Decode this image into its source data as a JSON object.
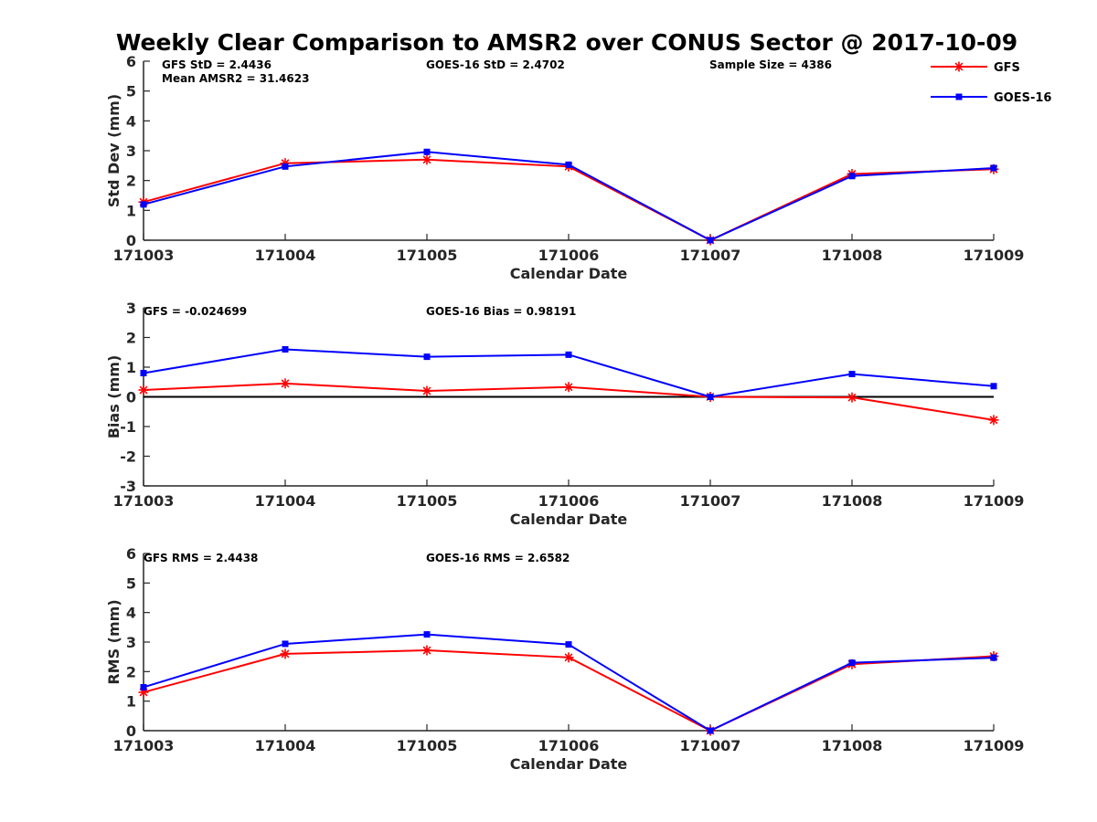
{
  "chart_data": {
    "title": "Weekly Clear Comparison to AMSR2 over CONUS Sector @ 2017-10-09",
    "legend": {
      "placement": "top-right",
      "entries": [
        {
          "name": "GFS",
          "color": "#ff0000",
          "marker": "asterisk"
        },
        {
          "name": "GOES-16",
          "color": "#0000ff",
          "marker": "square"
        }
      ]
    },
    "panels": [
      {
        "type": "line",
        "ylabel": "Std Dev (mm)",
        "xlabel": "Calendar Date",
        "categories": [
          "171003",
          "171004",
          "171005",
          "171006",
          "171007",
          "171008",
          "171009"
        ],
        "ylim": [
          0,
          6
        ],
        "yticks": [
          "0",
          "1",
          "2",
          "3",
          "4",
          "5",
          "6"
        ],
        "zero_line": false,
        "series": [
          {
            "name": "GFS",
            "color": "#ff0000",
            "marker": "asterisk",
            "values": [
              1.28,
              2.58,
              2.7,
              2.47,
              0.0,
              2.22,
              2.38
            ]
          },
          {
            "name": "GOES-16",
            "color": "#0000ff",
            "marker": "square",
            "values": [
              1.2,
              2.47,
              2.96,
              2.53,
              0.0,
              2.15,
              2.42
            ]
          }
        ],
        "annotations": [
          {
            "text": "GFS StD = 2.4436"
          },
          {
            "text": "Mean AMSR2 = 31.4623"
          },
          {
            "text": "GOES-16 StD = 2.4702"
          },
          {
            "text": "Sample Size = 4386"
          }
        ]
      },
      {
        "type": "line",
        "ylabel": "Bias (mm)",
        "xlabel": "Calendar Date",
        "categories": [
          "171003",
          "171004",
          "171005",
          "171006",
          "171007",
          "171008",
          "171009"
        ],
        "ylim": [
          -3,
          3
        ],
        "yticks": [
          "-3",
          "-2",
          "-1",
          "0",
          "1",
          "2",
          "3"
        ],
        "zero_line": true,
        "series": [
          {
            "name": "GFS",
            "color": "#ff0000",
            "marker": "asterisk",
            "values": [
              0.23,
              0.45,
              0.2,
              0.33,
              0.0,
              -0.02,
              -0.78
            ]
          },
          {
            "name": "GOES-16",
            "color": "#0000ff",
            "marker": "square",
            "values": [
              0.8,
              1.6,
              1.35,
              1.42,
              0.0,
              0.77,
              0.36
            ]
          }
        ],
        "annotations": [
          {
            "text": "GFS = -0.024699"
          },
          {
            "text": "GOES-16 Bias  = 0.98191"
          }
        ]
      },
      {
        "type": "line",
        "ylabel": "RMS (mm)",
        "xlabel": "Calendar Date",
        "categories": [
          "171003",
          "171004",
          "171005",
          "171006",
          "171007",
          "171008",
          "171009"
        ],
        "ylim": [
          0,
          6
        ],
        "yticks": [
          "0",
          "1",
          "2",
          "3",
          "4",
          "5",
          "6"
        ],
        "zero_line": false,
        "series": [
          {
            "name": "GFS",
            "color": "#ff0000",
            "marker": "asterisk",
            "values": [
              1.3,
              2.6,
              2.72,
              2.48,
              0.0,
              2.25,
              2.52
            ]
          },
          {
            "name": "GOES-16",
            "color": "#0000ff",
            "marker": "square",
            "values": [
              1.47,
              2.94,
              3.26,
              2.92,
              0.0,
              2.3,
              2.47
            ]
          }
        ],
        "annotations": [
          {
            "text": "GFS RMS = 2.4438"
          },
          {
            "text": "GOES-16 RMS = 2.6582"
          }
        ]
      }
    ]
  }
}
